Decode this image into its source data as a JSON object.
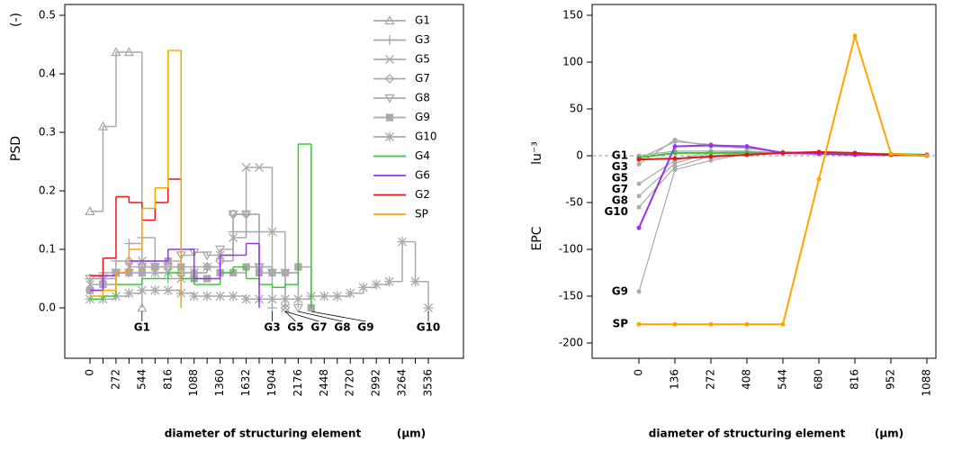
{
  "chart_data": [
    {
      "type": "step",
      "y_label": "PSD",
      "y_unit": "(-)",
      "x_label": "diameter of structuring element",
      "x_unit": "(µm)",
      "x": [
        0,
        136,
        272,
        408,
        544,
        680,
        816,
        952,
        1088,
        1224,
        1360,
        1496,
        1632,
        1768,
        1904,
        2040,
        2176,
        2312,
        2448,
        2584,
        2720,
        2856,
        2992,
        3128,
        3264,
        3400,
        3536
      ],
      "xlim": [
        0,
        3536
      ],
      "ylim": [
        0,
        0.5
      ],
      "xticks": [
        0,
        272,
        544,
        816,
        1088,
        1360,
        1632,
        1904,
        2176,
        2448,
        2720,
        2992,
        3264,
        3536
      ],
      "xminorticks": [
        136,
        408,
        680,
        952,
        1224,
        1496,
        1768,
        2040,
        2312,
        2584,
        2856,
        3128,
        3400
      ],
      "yticks": [
        {
          "value": 0,
          "label": "0.0"
        },
        0.1,
        0.2,
        0.3,
        0.4,
        0.5
      ],
      "legend": "topright",
      "series": [
        {
          "name": "G1",
          "color": "#aaaaaa",
          "marker": "triangle",
          "values": [
            0.165,
            0.31,
            0.437,
            0.437,
            0.0,
            null,
            null,
            null,
            null,
            null,
            null,
            null,
            null,
            null,
            null,
            null,
            null,
            null,
            null,
            null,
            null,
            null,
            null,
            null,
            null,
            null,
            null
          ]
        },
        {
          "name": "G3",
          "color": "#aaaaaa",
          "marker": "plus",
          "values": [
            0.05,
            0.06,
            0.08,
            0.11,
            0.12,
            0.06,
            0.05,
            0.06,
            0.07,
            0.07,
            0.09,
            0.13,
            0.13,
            0.13,
            0.0,
            null,
            null,
            null,
            null,
            null,
            null,
            null,
            null,
            null,
            null,
            null,
            null
          ]
        },
        {
          "name": "G5",
          "color": "#aaaaaa",
          "marker": "cross",
          "values": [
            0.04,
            0.05,
            0.06,
            0.07,
            0.08,
            0.06,
            0.06,
            0.05,
            0.06,
            0.07,
            0.09,
            0.12,
            0.24,
            0.24,
            0.13,
            0.0,
            null,
            null,
            null,
            null,
            null,
            null,
            null,
            null,
            null,
            null,
            null
          ]
        },
        {
          "name": "G7",
          "color": "#aaaaaa",
          "marker": "diamond",
          "values": [
            0.03,
            0.04,
            0.06,
            0.08,
            0.07,
            0.07,
            0.07,
            0.06,
            0.06,
            0.07,
            0.08,
            0.16,
            0.16,
            0.07,
            0.06,
            0.0,
            null,
            null,
            null,
            null,
            null,
            null,
            null,
            null,
            null,
            null,
            null
          ]
        },
        {
          "name": "G8",
          "color": "#aaaaaa",
          "marker": "triangle-down",
          "values": [
            0.05,
            0.05,
            0.06,
            0.06,
            0.07,
            0.07,
            0.07,
            0.09,
            0.095,
            0.09,
            0.1,
            0.16,
            0.16,
            0.07,
            0.06,
            0.06,
            0.0,
            null,
            null,
            null,
            null,
            null,
            null,
            null,
            null,
            null,
            null
          ]
        },
        {
          "name": "G9",
          "color": "#aaaaaa",
          "marker": "square",
          "values": [
            0.03,
            0.04,
            0.06,
            0.06,
            0.06,
            0.07,
            0.08,
            0.07,
            0.05,
            0.05,
            0.06,
            0.06,
            0.07,
            0.06,
            0.06,
            0.06,
            0.07,
            0.0,
            null,
            null,
            null,
            null,
            null,
            null,
            null,
            null,
            null
          ]
        },
        {
          "name": "G10",
          "color": "#aaaaaa",
          "marker": "star",
          "values": [
            0.015,
            0.015,
            0.02,
            0.025,
            0.03,
            0.03,
            0.03,
            0.025,
            0.02,
            0.02,
            0.02,
            0.02,
            0.015,
            0.015,
            0.015,
            0.015,
            0.015,
            0.02,
            0.02,
            0.02,
            0.025,
            0.035,
            0.04,
            0.045,
            0.113,
            0.045,
            0.0
          ]
        },
        {
          "name": "G4",
          "color": "#33cc33",
          "marker": "none",
          "values": [
            0.015,
            0.02,
            0.04,
            0.04,
            0.05,
            0.05,
            0.06,
            0.05,
            0.04,
            0.04,
            0.06,
            0.07,
            0.05,
            0.04,
            0.035,
            0.04,
            0.28,
            0.0,
            null,
            null,
            null,
            null,
            null,
            null,
            null,
            null,
            null
          ]
        },
        {
          "name": "G6",
          "color": "#9933ee",
          "marker": "none",
          "values": [
            0.03,
            0.055,
            0.06,
            0.08,
            0.08,
            0.08,
            0.1,
            0.1,
            0.05,
            0.05,
            0.09,
            0.09,
            0.11,
            0.0,
            null,
            null,
            null,
            null,
            null,
            null,
            null,
            null,
            null,
            null,
            null,
            null,
            null
          ]
        },
        {
          "name": "G2",
          "color": "#e8161b",
          "marker": "none",
          "values": [
            0.055,
            0.085,
            0.19,
            0.18,
            0.15,
            0.18,
            0.22,
            0.0,
            null,
            null,
            null,
            null,
            null,
            null,
            null,
            null,
            null,
            null,
            null,
            null,
            null,
            null,
            null,
            null,
            null,
            null,
            null
          ]
        },
        {
          "name": "SP",
          "color": "#ffa500",
          "marker": "none",
          "values": [
            0.02,
            0.03,
            0.06,
            0.1,
            0.17,
            0.205,
            0.44,
            0.0,
            null,
            null,
            null,
            null,
            null,
            null,
            null,
            null,
            null,
            null,
            null,
            null,
            null,
            null,
            null,
            null,
            null,
            null,
            null
          ]
        }
      ],
      "annotations": [
        "G1",
        "G3",
        "G5",
        "G7",
        "G8",
        "G9",
        "G10"
      ]
    },
    {
      "type": "line",
      "y_label": "EPC",
      "y_unit": "lu⁻³",
      "x_label": "diameter of structuring element",
      "x_unit": "(µm)",
      "x": [
        0,
        136,
        272,
        408,
        544,
        680,
        816,
        952,
        1088
      ],
      "xlim": [
        0,
        1088
      ],
      "ylim": [
        -200,
        150
      ],
      "xticks": [
        0,
        136,
        272,
        408,
        544,
        680,
        816,
        952,
        1088
      ],
      "yticks": [
        -200,
        -150,
        -100,
        -50,
        0,
        50,
        100,
        150
      ],
      "reference_line": 0,
      "series": [
        {
          "name": "G1",
          "color": "#aaaaaa",
          "values": [
            0,
            5,
            5,
            4,
            3,
            2,
            2,
            1,
            1
          ]
        },
        {
          "name": "G3",
          "color": "#aaaaaa",
          "values": [
            -3,
            15,
            12,
            8,
            4,
            3,
            2,
            1,
            1
          ]
        },
        {
          "name": "G5",
          "color": "#aaaaaa",
          "values": [
            -9,
            17,
            10,
            8,
            4,
            3,
            2,
            1,
            1
          ]
        },
        {
          "name": "G7",
          "color": "#aaaaaa",
          "values": [
            -30,
            -5,
            5,
            5,
            3,
            2,
            2,
            1,
            0
          ]
        },
        {
          "name": "G8",
          "color": "#aaaaaa",
          "values": [
            -43,
            -8,
            3,
            4,
            3,
            2,
            2,
            1,
            0
          ]
        },
        {
          "name": "G10",
          "color": "#aaaaaa",
          "values": [
            -55,
            -12,
            0,
            3,
            3,
            2,
            2,
            1,
            0
          ]
        },
        {
          "name": "G9",
          "color": "#aaaaaa",
          "values": [
            -145,
            -15,
            -5,
            2,
            3,
            2,
            2,
            1,
            0
          ]
        },
        {
          "name": "G4",
          "color": "#33cc33",
          "values": [
            -2,
            3,
            3,
            3,
            3,
            3,
            2,
            2,
            1
          ]
        },
        {
          "name": "G6",
          "color": "#9933ee",
          "values": [
            -77,
            10,
            11,
            10,
            3,
            2,
            1,
            1,
            1
          ]
        },
        {
          "name": "G2",
          "color": "#e8161b",
          "values": [
            -4,
            -3,
            -1,
            1,
            3,
            4,
            3,
            1,
            0
          ]
        },
        {
          "name": "SP",
          "color": "#ffa500",
          "values": [
            -180,
            -180,
            -180,
            -180,
            -180,
            -25,
            128,
            2,
            0
          ]
        }
      ],
      "labels": [
        "G1",
        "G3",
        "G5",
        "G7",
        "G8",
        "G10",
        "G9",
        "SP"
      ]
    }
  ]
}
